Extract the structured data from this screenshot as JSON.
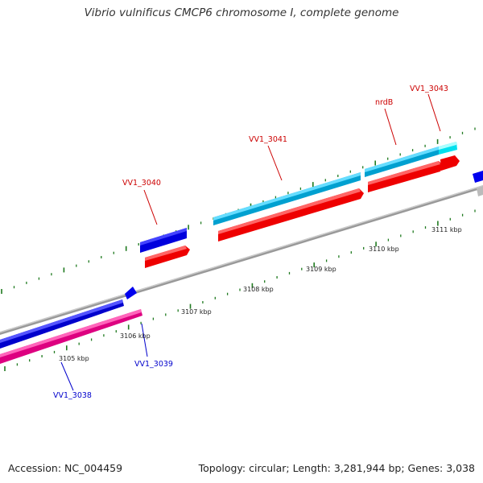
{
  "title": "Vibrio vulnificus CMCP6 chromosome I, complete genome",
  "footer": {
    "accession": "Accession: NC_004459",
    "summary": "Topology: circular; Length: 3,281,944 bp; Genes: 3,038"
  },
  "colors": {
    "tick": "#1f7a1f",
    "backbone": "#888888",
    "forward_label": "#cc0000",
    "reverse_label": "#0000cc",
    "red": "#ff0000",
    "blue": "#0000ee",
    "cyan": "#33ccff",
    "magenta": "#ff1493",
    "gray": "#bbbbbb"
  },
  "scale_labels": [
    {
      "text": "3105 kbp",
      "kbp": 3105
    },
    {
      "text": "3106 kbp",
      "kbp": 3106
    },
    {
      "text": "3107 kbp",
      "kbp": 3107
    },
    {
      "text": "3108 kbp",
      "kbp": 3108
    },
    {
      "text": "3109 kbp",
      "kbp": 3109
    },
    {
      "text": "3110 kbp",
      "kbp": 3110
    },
    {
      "text": "3111 kbp",
      "kbp": 3111
    }
  ],
  "gene_labels": [
    {
      "text": "VV1_3038",
      "strand": "reverse"
    },
    {
      "text": "VV1_3039",
      "strand": "reverse"
    },
    {
      "text": "VV1_3040",
      "strand": "forward"
    },
    {
      "text": "VV1_3041",
      "strand": "forward"
    },
    {
      "text": "nrdB",
      "strand": "forward"
    },
    {
      "text": "VV1_3043",
      "strand": "forward"
    }
  ]
}
